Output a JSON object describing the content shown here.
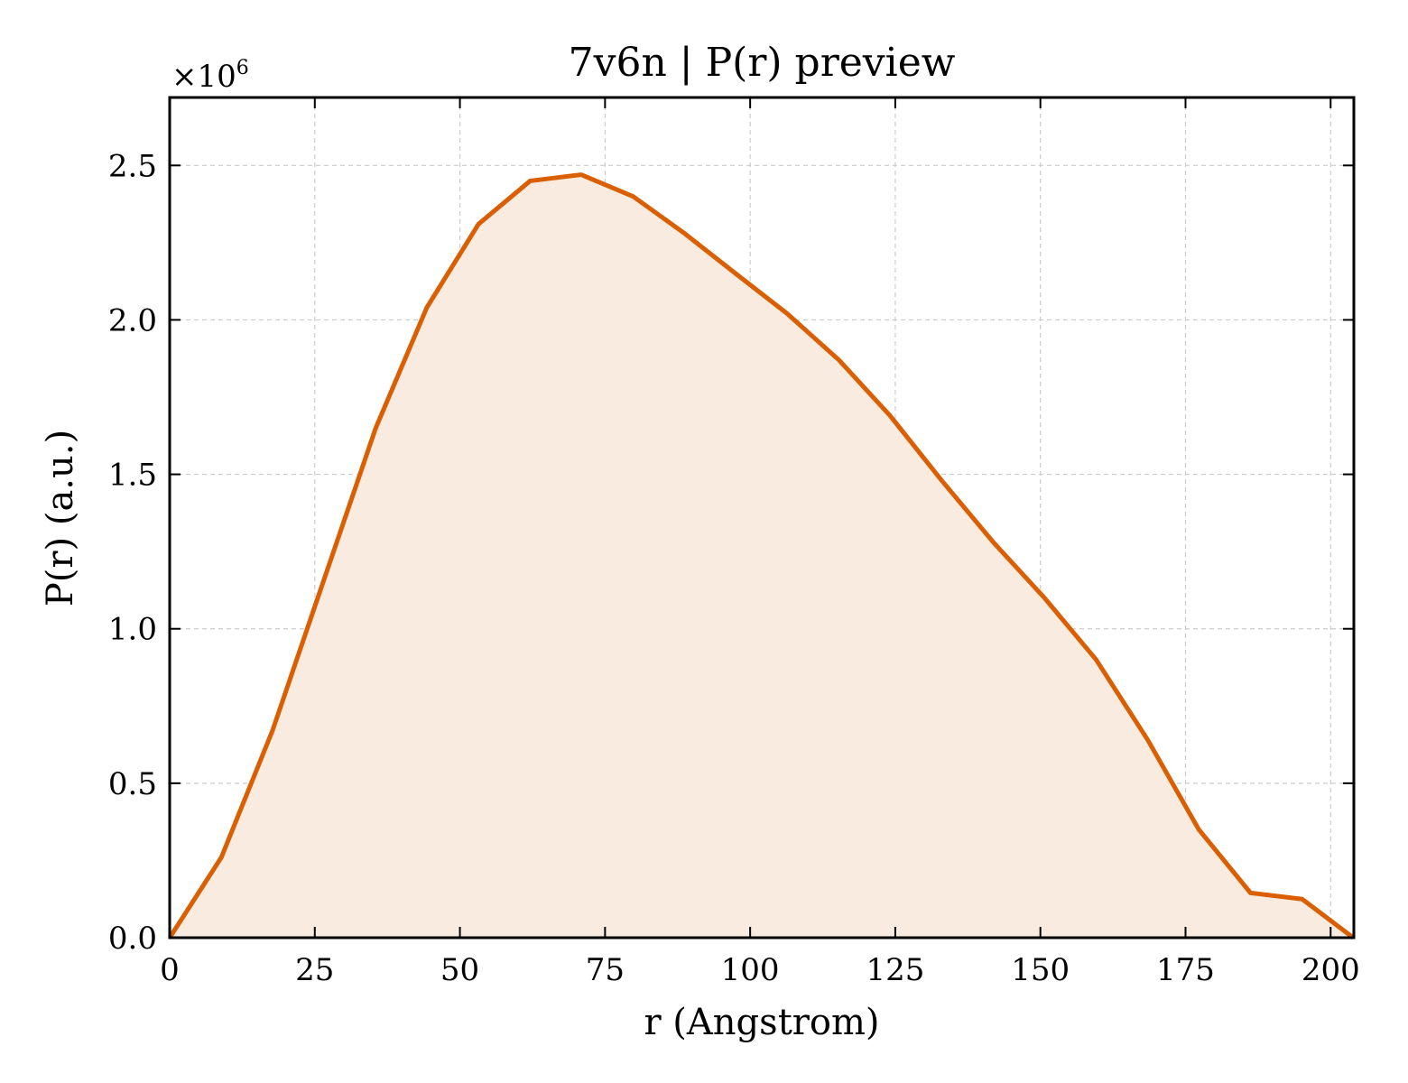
{
  "chart_data": {
    "type": "area",
    "title": "7v6n | P(r) preview",
    "xlabel": "r (Angstrom)",
    "ylabel": "P(r) (a.u.)",
    "y_offset_label": "×10",
    "y_offset_exponent": "6",
    "xlim": [
      0,
      204
    ],
    "ylim": [
      0,
      2.72
    ],
    "x_ticks": [
      0,
      25,
      50,
      75,
      100,
      125,
      150,
      175,
      200
    ],
    "x_tick_labels": [
      "0",
      "25",
      "50",
      "75",
      "100",
      "125",
      "150",
      "175",
      "200"
    ],
    "y_ticks": [
      0,
      0.5,
      1.0,
      1.5,
      2.0,
      2.5
    ],
    "y_tick_labels": [
      "0.0",
      "0.5",
      "1.0",
      "1.5",
      "2.0",
      "2.5"
    ],
    "grid": true,
    "series": [
      {
        "x": [
          0,
          8.9,
          17.7,
          26.6,
          35.5,
          44.3,
          53.2,
          62.1,
          70.9,
          79.8,
          88.7,
          97.5,
          106.4,
          115.3,
          124.1,
          133.0,
          141.9,
          150.7,
          159.6,
          168.5,
          177.3,
          186.2,
          195.1,
          203.9
        ],
        "values": [
          0.0,
          0.26,
          0.67,
          1.16,
          1.65,
          2.04,
          2.31,
          2.45,
          2.47,
          2.4,
          2.28,
          2.15,
          2.02,
          1.87,
          1.69,
          1.48,
          1.28,
          1.1,
          0.9,
          0.64,
          0.35,
          0.145,
          0.125,
          0.0
        ]
      }
    ],
    "colors": {
      "line": "#d95f02",
      "fill": "#f9ebe0"
    }
  }
}
